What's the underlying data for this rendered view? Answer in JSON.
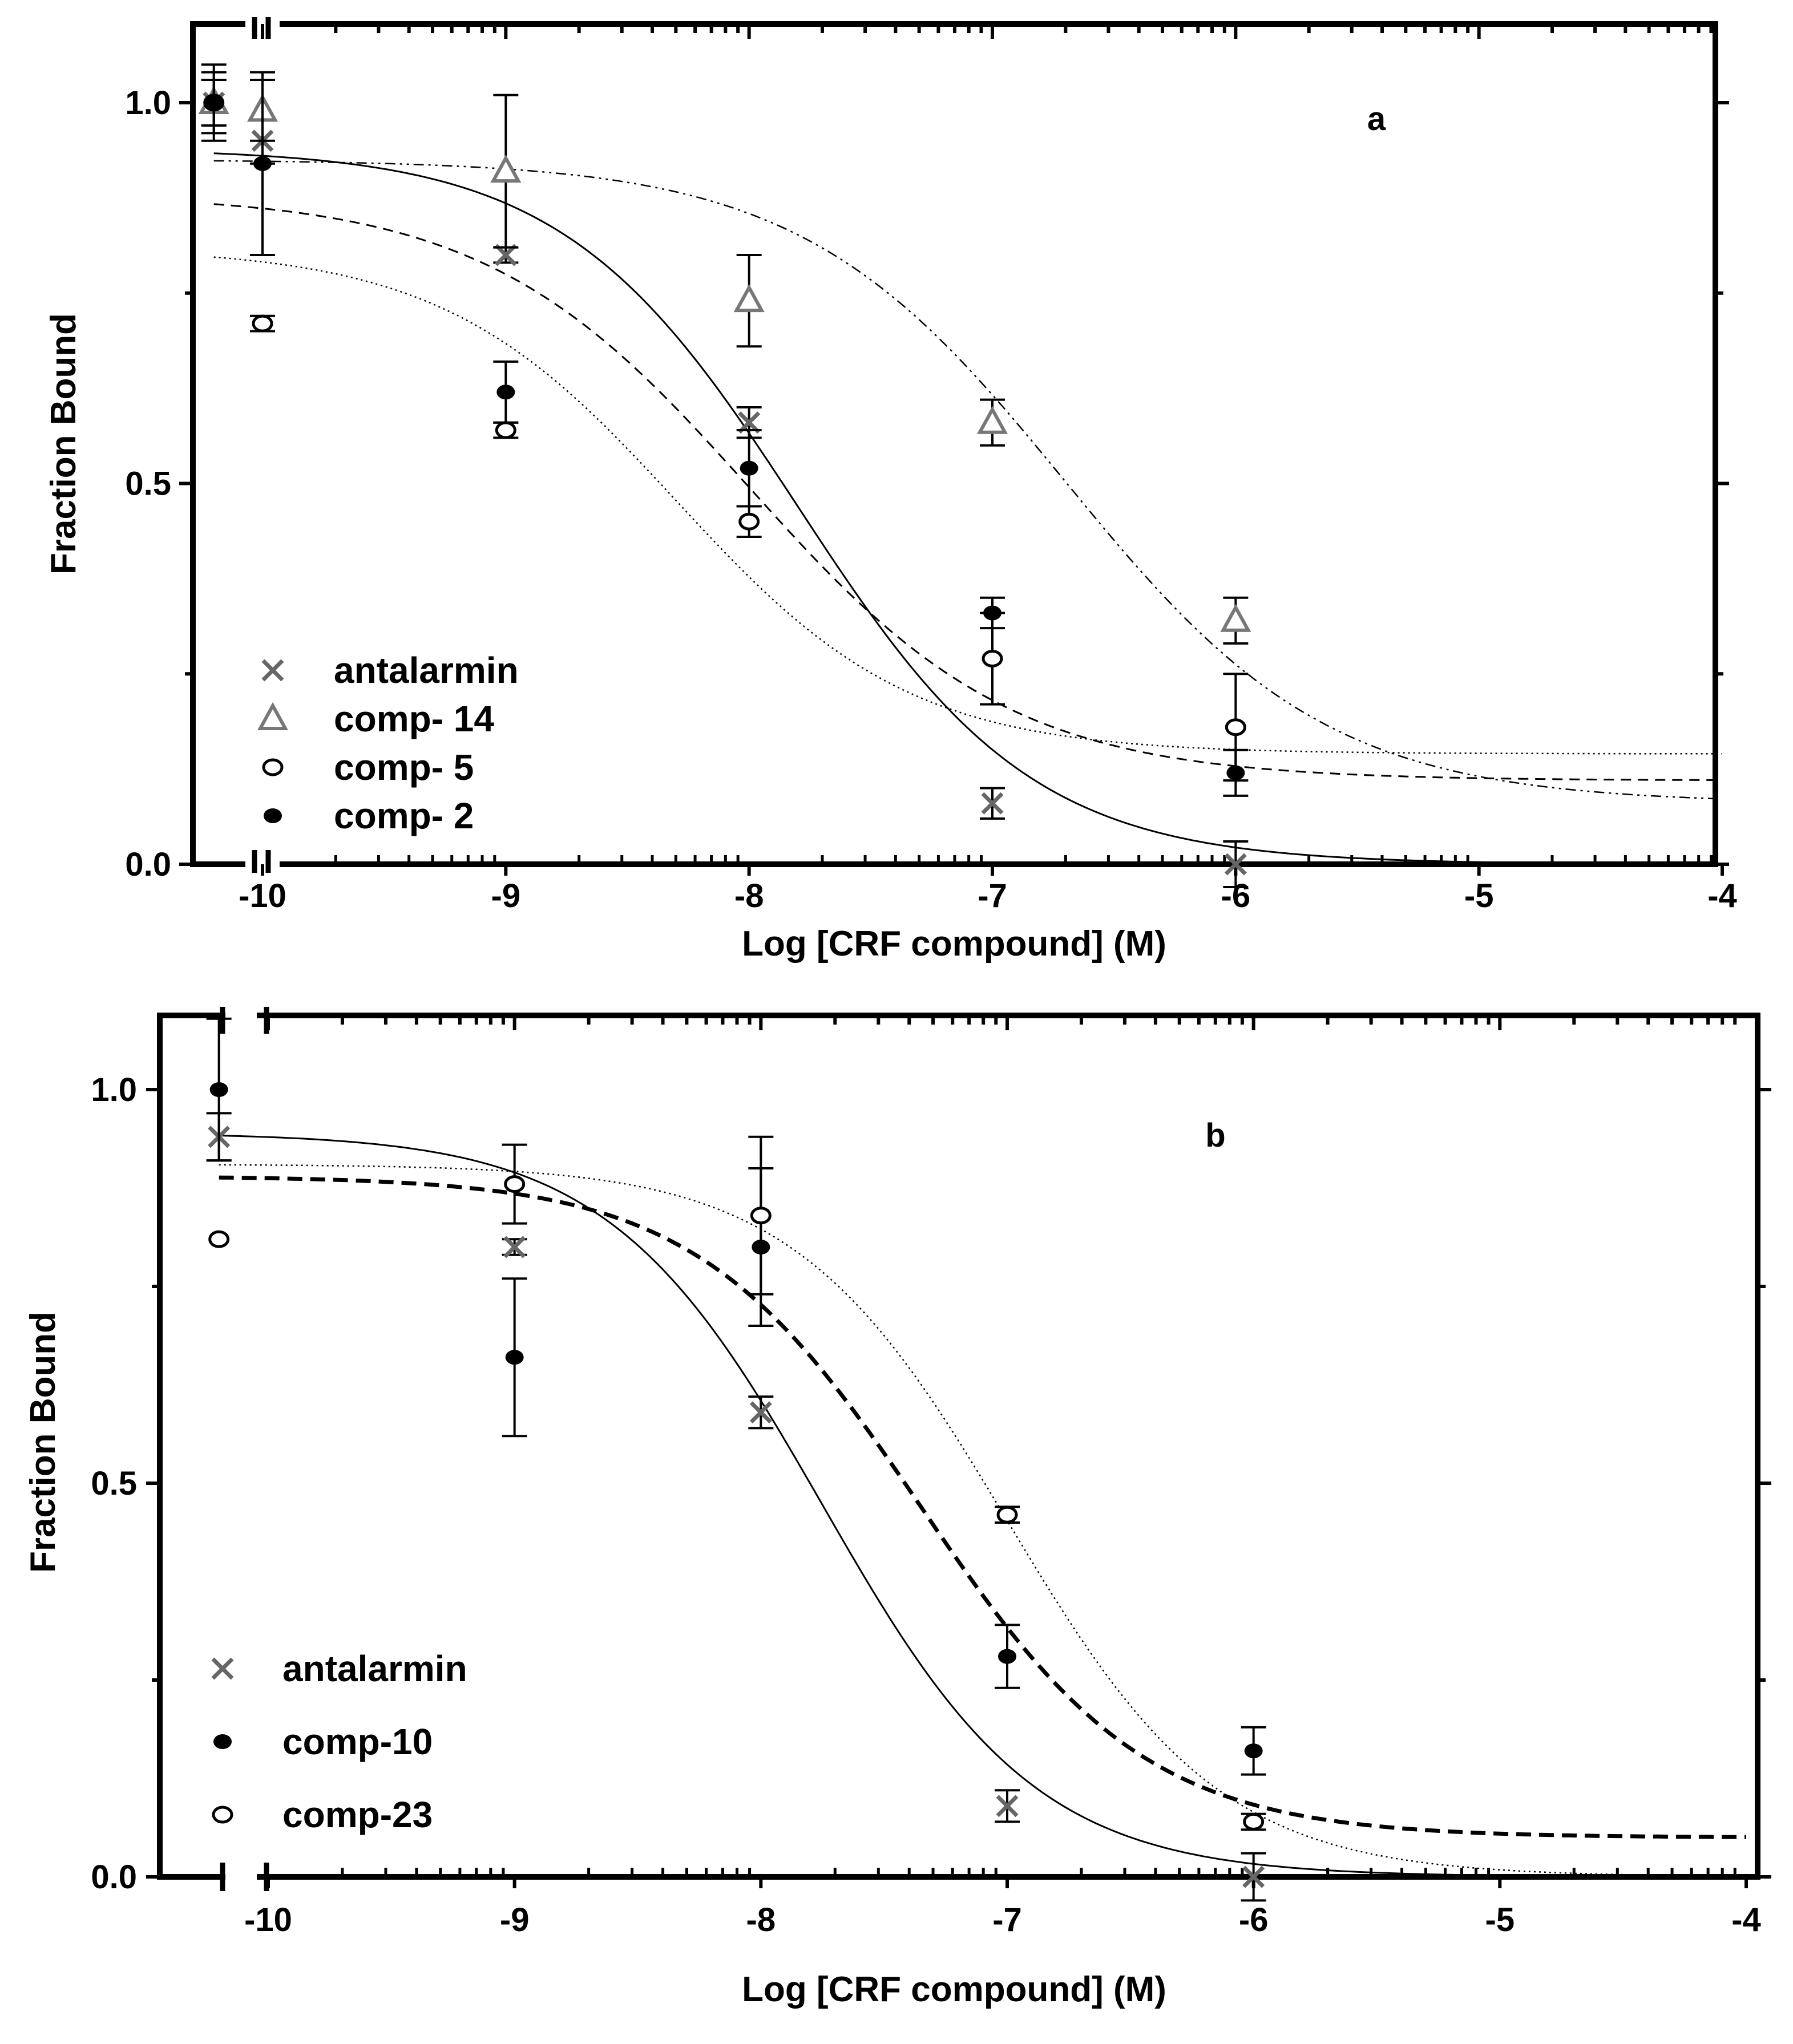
{
  "chart_data": [
    {
      "type": "scatter",
      "panel": "a",
      "xlabel": "Log [CRF compound] (M)",
      "ylabel": "Fraction Bound",
      "xlim": [
        -10.2,
        -4
      ],
      "ylim": [
        0,
        1.1
      ],
      "xticks": [
        -10,
        -9,
        -8,
        -7,
        -6,
        -5,
        -4
      ],
      "xtick_labels": [
        "-10",
        "-9",
        "-8",
        "-7",
        "-6",
        "-5",
        "-4"
      ],
      "yticks": [
        0,
        0.5,
        1.0
      ],
      "ytick_labels": [
        "0.0",
        "0.5",
        "1.0"
      ],
      "legend_position": "bottom-left",
      "series": [
        {
          "name": "antalarmin",
          "marker": "x",
          "color": "#666666",
          "line": "solid",
          "points": [
            {
              "x": -10.2,
              "y": 1.0,
              "err": 0.05
            },
            {
              "x": -10,
              "y": 0.95,
              "err": 0.03
            },
            {
              "x": -9,
              "y": 0.8,
              "err": 0.01
            },
            {
              "x": -8,
              "y": 0.58,
              "err": 0.02
            },
            {
              "x": -7,
              "y": 0.08,
              "err": 0.02
            },
            {
              "x": -6,
              "y": 0.0,
              "err": 0.03
            }
          ],
          "fit": {
            "top": 0.94,
            "bottom": 0.0,
            "logec50": -7.8,
            "hill": 0.9
          }
        },
        {
          "name": "comp- 14",
          "marker": "triangle",
          "color": "#777777",
          "line": "dash-dot-dot",
          "points": [
            {
              "x": -10.2,
              "y": 1.0,
              "err": 0.04
            },
            {
              "x": -10,
              "y": 0.99,
              "err": 0.04
            },
            {
              "x": -9,
              "y": 0.91,
              "err": 0.1
            },
            {
              "x": -8,
              "y": 0.74,
              "err": 0.06
            },
            {
              "x": -7,
              "y": 0.58,
              "err": 0.03
            },
            {
              "x": -6,
              "y": 0.32,
              "err": 0.03
            }
          ],
          "fit": {
            "top": 0.925,
            "bottom": 0.08,
            "logec50": -6.7,
            "hill": 0.8
          }
        },
        {
          "name": "comp- 5",
          "marker": "open-circle",
          "color": "#000000",
          "line": "dotted",
          "points": [
            {
              "x": -10.2,
              "y": 1.0,
              "err": 0.03
            },
            {
              "x": -10,
              "y": 0.71,
              "err": 0.01
            },
            {
              "x": -9,
              "y": 0.57,
              "err": 0.01
            },
            {
              "x": -8,
              "y": 0.45,
              "err": 0.02
            },
            {
              "x": -7,
              "y": 0.27,
              "err": 0.06
            },
            {
              "x": -6,
              "y": 0.18,
              "err": 0.07
            }
          ],
          "fit": {
            "top": 0.81,
            "bottom": 0.145,
            "logec50": -8.3,
            "hill": 0.9
          }
        },
        {
          "name": "comp- 2",
          "marker": "filled-circle",
          "color": "#000000",
          "line": "dashed",
          "points": [
            {
              "x": -10.2,
              "y": 1.0,
              "err": 0.03
            },
            {
              "x": -10,
              "y": 0.92,
              "err": 0.12
            },
            {
              "x": -9,
              "y": 0.62,
              "err": 0.04
            },
            {
              "x": -8,
              "y": 0.52,
              "err": 0.05
            },
            {
              "x": -7,
              "y": 0.33,
              "err": 0.02
            },
            {
              "x": -6,
              "y": 0.12,
              "err": 0.03
            }
          ],
          "fit": {
            "top": 0.88,
            "bottom": 0.11,
            "logec50": -8.0,
            "hill": 0.8
          }
        }
      ]
    },
    {
      "type": "scatter",
      "panel": "b",
      "xlabel": "Log [CRF compound] (M)",
      "ylabel": "Fraction Bound",
      "xlim": [
        -10.2,
        -4
      ],
      "ylim": [
        0,
        1.1
      ],
      "xticks": [
        -10,
        -9,
        -8,
        -7,
        -6,
        -5,
        -4
      ],
      "xtick_labels": [
        "-10",
        "-9",
        "-8",
        "-7",
        "-6",
        "-5",
        "-4"
      ],
      "yticks": [
        0,
        0.5,
        1.0
      ],
      "ytick_labels": [
        "0.0",
        "0.5",
        "1.0"
      ],
      "legend_position": "bottom-left",
      "series": [
        {
          "name": "antalarmin",
          "marker": "x",
          "color": "#666666",
          "line": "solid",
          "points": [
            {
              "x": -10.2,
              "y": 0.94,
              "err": 0.03
            },
            {
              "x": -9,
              "y": 0.8,
              "err": 0.01
            },
            {
              "x": -8,
              "y": 0.59,
              "err": 0.02
            },
            {
              "x": -7,
              "y": 0.09,
              "err": 0.02
            },
            {
              "x": -6,
              "y": 0.0,
              "err": 0.03
            }
          ],
          "fit": {
            "top": 0.945,
            "bottom": 0.0,
            "logec50": -7.75,
            "hill": 1.0
          }
        },
        {
          "name": "comp-10",
          "marker": "filled-circle",
          "color": "#000000",
          "line": "bold-dashed",
          "points": [
            {
              "x": -10.2,
              "y": 1.0,
              "err": 0.09
            },
            {
              "x": -9,
              "y": 0.66,
              "err": 0.1
            },
            {
              "x": -8,
              "y": 0.8,
              "err": 0.1
            },
            {
              "x": -7,
              "y": 0.28,
              "err": 0.04
            },
            {
              "x": -6,
              "y": 0.16,
              "err": 0.03
            }
          ],
          "fit": {
            "top": 0.89,
            "bottom": 0.05,
            "logec50": -7.35,
            "hill": 0.95
          }
        },
        {
          "name": "comp-23",
          "marker": "open-circle",
          "color": "#000000",
          "line": "dotted",
          "points": [
            {
              "x": -10.2,
              "y": 0.81,
              "err": 0.0
            },
            {
              "x": -9,
              "y": 0.88,
              "err": 0.05
            },
            {
              "x": -8,
              "y": 0.84,
              "err": 0.1
            },
            {
              "x": -7,
              "y": 0.46,
              "err": 0.01
            },
            {
              "x": -6,
              "y": 0.07,
              "err": 0.01
            }
          ],
          "fit": {
            "top": 0.905,
            "bottom": 0.0,
            "logec50": -7.0,
            "hill": 1.0
          }
        }
      ]
    }
  ]
}
